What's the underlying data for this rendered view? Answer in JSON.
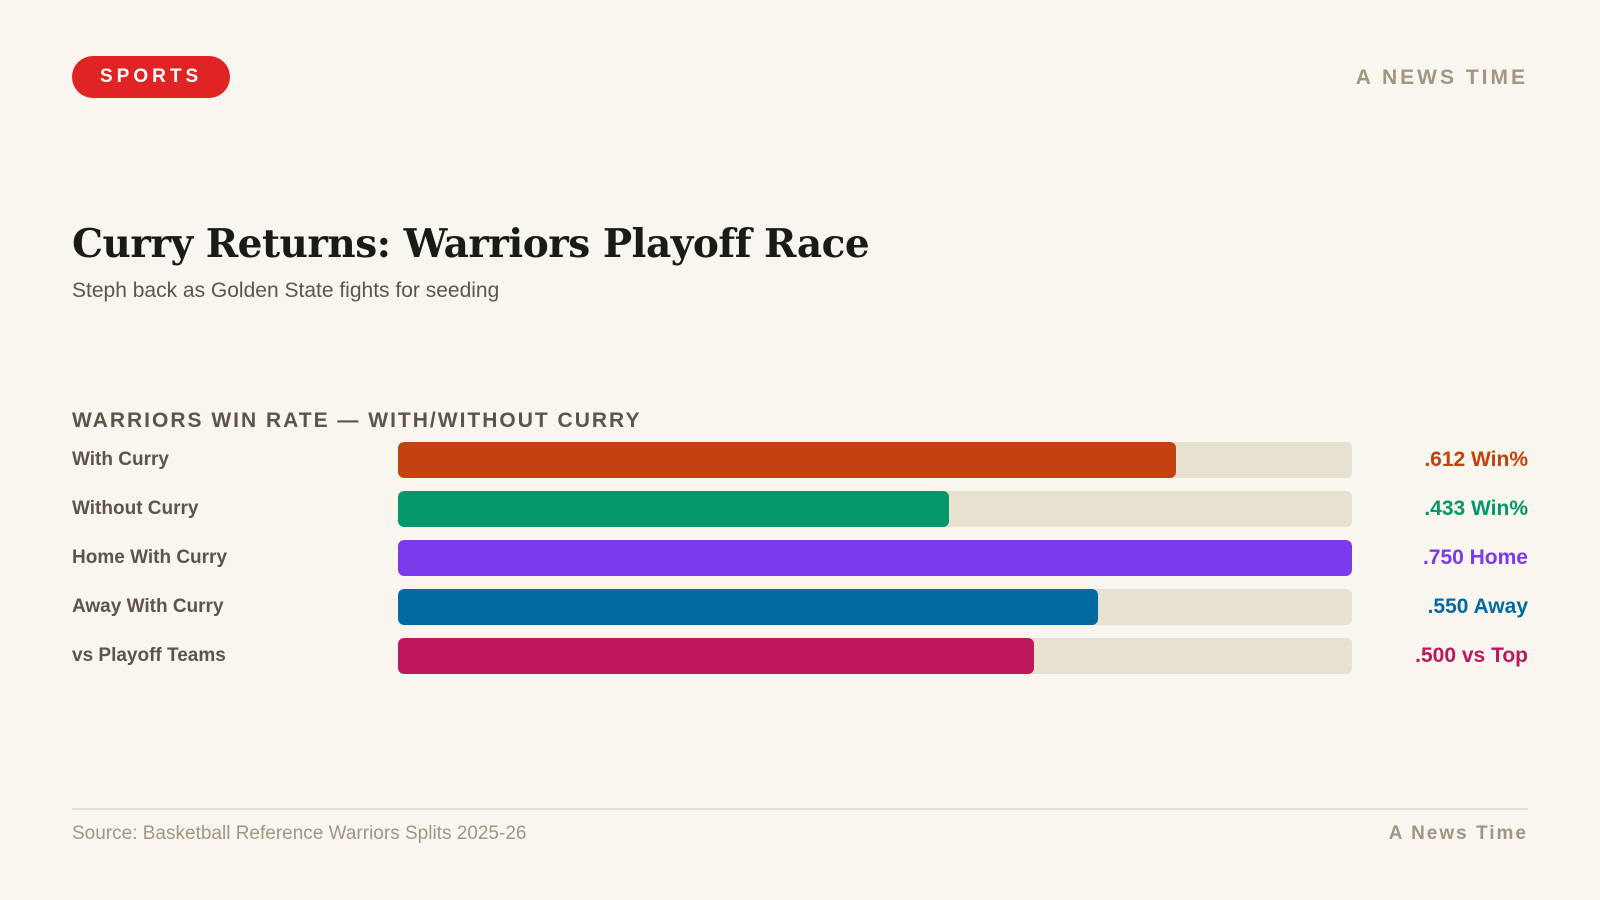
{
  "header": {
    "badge": "SPORTS",
    "brand": "A NEWS TIME"
  },
  "headline": "Curry Returns: Warriors Playoff Race",
  "subhead": "Steph back as Golden State fights for seeding",
  "chart_data": {
    "type": "bar",
    "orientation": "horizontal",
    "title": "WARRIORS WIN RATE — WITH/WITHOUT CURRY",
    "categories": [
      "With Curry",
      "Without Curry",
      "Home With Curry",
      "Away With Curry",
      "vs Playoff Teams"
    ],
    "values": [
      0.612,
      0.433,
      0.75,
      0.55,
      0.5
    ],
    "value_labels": [
      ".612 Win%",
      ".433 Win%",
      ".750 Home",
      ".550 Away",
      ".500 vs Top"
    ],
    "colors": [
      "#c2410c",
      "#059669",
      "#7c3aed",
      "#0369a1",
      "#be185d"
    ],
    "xlim": [
      0,
      0.75
    ],
    "track_color": "#e8e0d1",
    "grid": false,
    "legend": "none"
  },
  "footer": {
    "source": "Source: Basketball Reference Warriors Splits 2025-26",
    "brand": "A News Time"
  }
}
